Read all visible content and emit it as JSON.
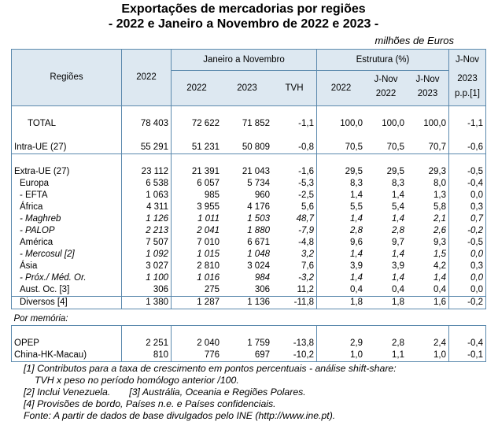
{
  "title_line1": "Exportações de mercadorias por regiões",
  "title_line2": "- 2022 e Janeiro a Novembro de 2022 e 2023 -",
  "units": "milhões de Euros",
  "header": {
    "regioes": "Regiões",
    "y2022": "2022",
    "jan_nov": "Janeiro a Novembro",
    "estrutura": "Estrutura (%)",
    "jnov_title": "J-Nov",
    "jnov_sub1": "2023",
    "jnov_sub2": "p.p.[1]",
    "sub_2022": "2022",
    "sub_2023": "2023",
    "sub_tvh": "TVH",
    "est_2022": "2022",
    "est_jnov22_a": "J-Nov",
    "est_jnov22_b": "2022",
    "est_jnov23_a": "J-Nov",
    "est_jnov23_b": "2023"
  },
  "rows": [
    {
      "label": "TOTAL",
      "v": [
        "78 403",
        "72 622",
        "71 852",
        "-1,1",
        "100,0",
        "100,0",
        "100,0",
        "-1,1"
      ]
    },
    {
      "label": "Intra-UE (27)",
      "v": [
        "55 291",
        "51 231",
        "50 809",
        "-0,8",
        "70,5",
        "70,5",
        "70,7",
        "-0,6"
      ]
    },
    {
      "label": "Extra-UE (27)",
      "v": [
        "23 112",
        "21 391",
        "21 043",
        "-1,6",
        "29,5",
        "29,5",
        "29,3",
        "-0,5"
      ]
    },
    {
      "label": "Europa",
      "v": [
        "6 538",
        "6 057",
        "5 734",
        "-5,3",
        "8,3",
        "8,3",
        "8,0",
        "-0,4"
      ]
    },
    {
      "label": "- EFTA",
      "v": [
        "1 063",
        "985",
        "960",
        "-2,5",
        "1,4",
        "1,4",
        "1,3",
        "0,0"
      ]
    },
    {
      "label": "África",
      "v": [
        "4 311",
        "3 955",
        "4 176",
        "5,6",
        "5,5",
        "5,4",
        "5,8",
        "0,3"
      ]
    },
    {
      "label": "- Maghreb",
      "v": [
        "1 126",
        "1 011",
        "1 503",
        "48,7",
        "1,4",
        "1,4",
        "2,1",
        "0,7"
      ]
    },
    {
      "label": "- PALOP",
      "v": [
        "2 213",
        "2 041",
        "1 880",
        "-7,9",
        "2,8",
        "2,8",
        "2,6",
        "-0,2"
      ]
    },
    {
      "label": "América",
      "v": [
        "7 507",
        "7 010",
        "6 671",
        "-4,8",
        "9,6",
        "9,7",
        "9,3",
        "-0,5"
      ]
    },
    {
      "label": "- Mercosul [2]",
      "v": [
        "1 092",
        "1 015",
        "1 048",
        "3,2",
        "1,4",
        "1,4",
        "1,5",
        "0,0"
      ]
    },
    {
      "label": "Ásia",
      "v": [
        "3 027",
        "2 810",
        "3 024",
        "7,6",
        "3,9",
        "3,9",
        "4,2",
        "0,3"
      ]
    },
    {
      "label": "- Próx./ Méd. Or.",
      "v": [
        "1 100",
        "1 016",
        "984",
        "-3,2",
        "1,4",
        "1,4",
        "1,4",
        "0,0"
      ]
    },
    {
      "label": "Aust. Oc. [3]",
      "v": [
        "306",
        "275",
        "306",
        "11,2",
        "0,4",
        "0,4",
        "0,4",
        "0,0"
      ]
    },
    {
      "label": "Diversos [4]",
      "v": [
        "1 380",
        "1 287",
        "1 136",
        "-11,8",
        "1,8",
        "1,8",
        "1,6",
        "-0,2"
      ]
    }
  ],
  "memo_label": "Por memória:",
  "memo_rows": [
    {
      "label": "OPEP",
      "v": [
        "2 251",
        "2 040",
        "1 759",
        "-13,8",
        "2,9",
        "2,8",
        "2,4",
        "-0,4"
      ]
    },
    {
      "label": "China-HK-Macau)",
      "v": [
        "810",
        "776",
        "697",
        "-10,2",
        "1,0",
        "1,1",
        "1,0",
        "-0,1"
      ]
    }
  ],
  "notes": {
    "n1a": "[1] Contributos para a taxa de crescimento em pontos percentuais - análise shift-share:",
    "n1b": "TVH x peso no período homólogo anterior /100.",
    "n2": "[2] Inclui Venezuela.",
    "n3": "[3] Austrália, Oceania e Regiões Polares.",
    "n4": "[4] Provisões de bordo, Países n.e. e Países confidenciais.",
    "fonte": "Fonte: A partir de dados de base divulgados pelo INE (http://www.ine.pt)."
  }
}
